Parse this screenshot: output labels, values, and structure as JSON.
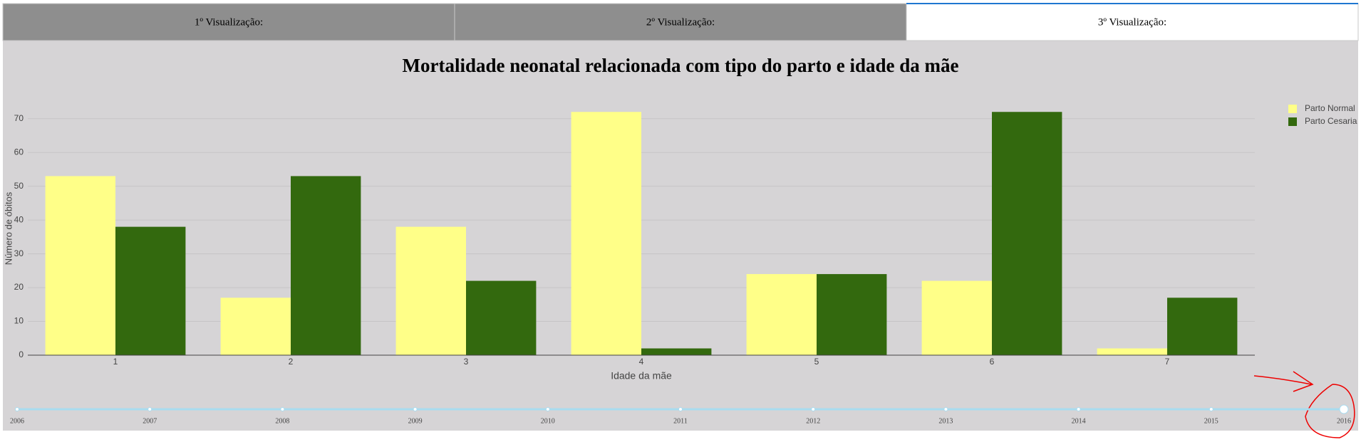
{
  "tabs": [
    {
      "label": "1º Visualização:"
    },
    {
      "label": "2º Visualização:"
    },
    {
      "label": "3º Visualização:"
    }
  ],
  "active_tab": 2,
  "chart_data": {
    "type": "bar",
    "title": "Mortalidade neonatal relacionada com tipo do parto e idade da mãe",
    "x_label": "Idade da mãe",
    "y_label": "Número de óbitos",
    "categories": [
      "1",
      "2",
      "3",
      "4",
      "5",
      "6",
      "7"
    ],
    "series": [
      {
        "name": "Parto Normal",
        "color": "#ffff88",
        "values": [
          53,
          17,
          38,
          72,
          24,
          22,
          2
        ]
      },
      {
        "name": "Parto Cesaria",
        "color": "#33690e",
        "values": [
          38,
          53,
          22,
          2,
          24,
          72,
          17
        ]
      }
    ],
    "ylim": [
      0,
      75
    ],
    "yticks": [
      0,
      10,
      20,
      30,
      40,
      50,
      60,
      70
    ],
    "grid": true,
    "legend": "top-right"
  },
  "slider": {
    "steps": [
      "2006",
      "2007",
      "2008",
      "2009",
      "2010",
      "2011",
      "2012",
      "2013",
      "2014",
      "2015",
      "2016"
    ],
    "active_step": 10
  }
}
